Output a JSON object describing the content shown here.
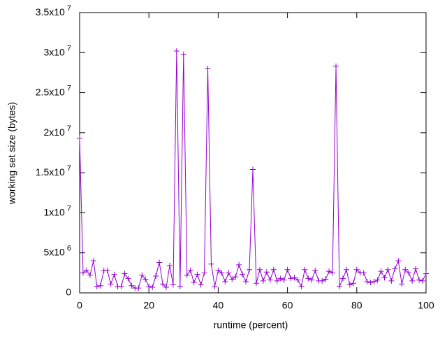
{
  "chart_data": {
    "type": "line",
    "xlabel": "runtime (percent)",
    "ylabel": "working set size (bytes)",
    "x": [
      0,
      1,
      2,
      3,
      4,
      5,
      6,
      7,
      8,
      9,
      10,
      11,
      12,
      13,
      14,
      15,
      16,
      17,
      18,
      19,
      20,
      21,
      22,
      23,
      24,
      25,
      26,
      27,
      28,
      29,
      30,
      31,
      32,
      33,
      34,
      35,
      36,
      37,
      38,
      39,
      40,
      41,
      42,
      43,
      44,
      45,
      46,
      47,
      48,
      49,
      50,
      51,
      52,
      53,
      54,
      55,
      56,
      57,
      58,
      59,
      60,
      61,
      62,
      63,
      64,
      65,
      66,
      67,
      68,
      69,
      70,
      71,
      72,
      73,
      74,
      75,
      76,
      77,
      78,
      79,
      80,
      81,
      82,
      83,
      84,
      85,
      86,
      87,
      88,
      89,
      90,
      91,
      92,
      93,
      94,
      95,
      96,
      97,
      98,
      99,
      100
    ],
    "series": [
      {
        "color": "#9400d3",
        "values": [
          19300000,
          2500000,
          2800000,
          2200000,
          4000000,
          800000,
          900000,
          2800000,
          2800000,
          1100000,
          2300000,
          800000,
          800000,
          2400000,
          1800000,
          900000,
          600000,
          600000,
          2200000,
          1700000,
          800000,
          700000,
          2100000,
          3800000,
          1100000,
          700000,
          3400000,
          1000000,
          30200000,
          800000,
          29800000,
          2200000,
          2800000,
          1300000,
          2300000,
          1000000,
          2500000,
          28000000,
          3600000,
          800000,
          2800000,
          2500000,
          1400000,
          2500000,
          1700000,
          2000000,
          3500000,
          2300000,
          1400000,
          2900000,
          15400000,
          1200000,
          2900000,
          1500000,
          2600000,
          1600000,
          2900000,
          1500000,
          1800000,
          1600000,
          2900000,
          1800000,
          1900000,
          1600000,
          800000,
          2900000,
          1800000,
          1600000,
          2800000,
          1500000,
          1500000,
          1700000,
          2700000,
          2500000,
          28300000,
          800000,
          1800000,
          2900000,
          1000000,
          1200000,
          2900000,
          2500000,
          2500000,
          1400000,
          1300000,
          1400000,
          1600000,
          2700000,
          1900000,
          2900000,
          1500000,
          3000000,
          4000000,
          1100000,
          2900000,
          2500000,
          1500000,
          3000000,
          1600000,
          1500000,
          2400000
        ]
      }
    ],
    "xlim": [
      0,
      100
    ],
    "xticks": [
      0,
      20,
      40,
      60,
      80,
      100
    ],
    "ylim": [
      0,
      35000000
    ],
    "yticks": [
      0,
      {
        "value": 5000000,
        "label": "5x10 6"
      },
      {
        "value": 10000000,
        "label": "1x10 7"
      },
      {
        "value": 15000000,
        "label": "1.5x10 7"
      },
      {
        "value": 20000000,
        "label": "2x10 7"
      },
      {
        "value": 25000000,
        "label": "2.5x10 7"
      },
      {
        "value": 30000000,
        "label": "3x10 7"
      },
      {
        "value": 35000000,
        "label": "3.5x10 7"
      }
    ],
    "grid": false
  }
}
